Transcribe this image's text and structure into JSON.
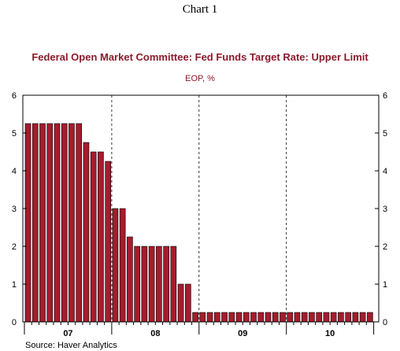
{
  "heading": "Chart 1",
  "source": "Source:  Haver Analytics",
  "chart_data": {
    "type": "bar",
    "title": "Federal Open Market Committee: Fed Funds Target Rate: Upper Limit",
    "subtitle": "EOP, %",
    "bar_color": "#a51c2e",
    "ylim": [
      0,
      6
    ],
    "y_ticks": [
      0,
      1,
      2,
      3,
      4,
      5,
      6
    ],
    "y_axis_both_sides": true,
    "grid": "dashed vertical year dividers",
    "x_year_labels": [
      "07",
      "08",
      "09",
      "10"
    ],
    "start": "2007-01",
    "end": "2010-12",
    "monthly_values": [
      5.25,
      5.25,
      5.25,
      5.25,
      5.25,
      5.25,
      5.25,
      5.25,
      4.75,
      4.5,
      4.5,
      4.25,
      3.0,
      3.0,
      2.25,
      2.0,
      2.0,
      2.0,
      2.0,
      2.0,
      2.0,
      1.0,
      1.0,
      0.25,
      0.25,
      0.25,
      0.25,
      0.25,
      0.25,
      0.25,
      0.25,
      0.25,
      0.25,
      0.25,
      0.25,
      0.25,
      0.25,
      0.25,
      0.25,
      0.25,
      0.25,
      0.25,
      0.25,
      0.25,
      0.25,
      0.25,
      0.25,
      0.25
    ]
  }
}
